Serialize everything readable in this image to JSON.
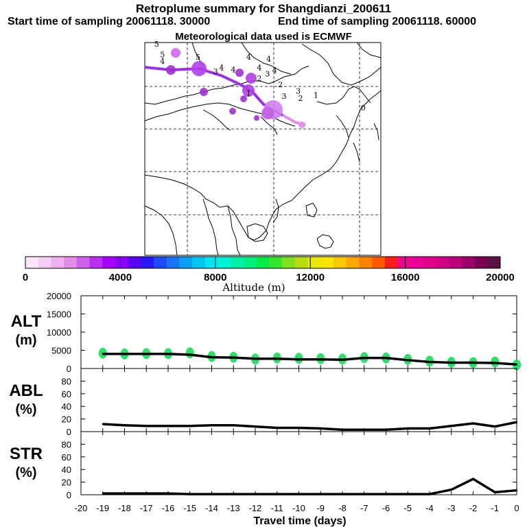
{
  "header": {
    "title": "Retroplume summary for Shangdianzi_200611",
    "start": "Start time of sampling 20061118. 30000",
    "end": "End time of sampling 20061118. 60000",
    "met": "Meteorological data used is ECMWF"
  },
  "colors": {
    "palette": [
      "#fbe6fb",
      "#f6cdf6",
      "#eeb0ee",
      "#e38ce6",
      "#d060ea",
      "#bb2ef0",
      "#a600f6",
      "#8c00f8",
      "#5a00f0",
      "#2a19f7",
      "#1f48f7",
      "#1675f6",
      "#0a9ff5",
      "#00c6f3",
      "#00e5ef",
      "#00f2d4",
      "#00f0a8",
      "#00ee7a",
      "#00eb49",
      "#33e82a",
      "#7fe21c",
      "#b7dc12",
      "#e8e80b",
      "#f7e400",
      "#fac800",
      "#fca600",
      "#fd8400",
      "#fe5a00",
      "#f91c1c",
      "#f3008c",
      "#ec009a",
      "#e00089",
      "#d20084",
      "#bc0079",
      "#9c0069",
      "#7a0055",
      "#5a1044"
    ],
    "plume_path": "#9c2ee8",
    "plume_tail": "#e68de6",
    "alt_blob": "#2ee06a"
  },
  "colorbar": {
    "ticks": [
      "0",
      "4000",
      "8000",
      "12000",
      "16000",
      "20000"
    ],
    "label": "Altitude (m)"
  },
  "map": {
    "labels": [
      {
        "t": "5",
        "x": -19,
        "y": 49.0
      },
      {
        "t": "5",
        "x": -18.5,
        "y": 46.5
      },
      {
        "t": "5",
        "x": -15.5,
        "y": 46.0
      },
      {
        "t": "4",
        "x": -18.5,
        "y": 45.0
      },
      {
        "t": "4",
        "x": -13.5,
        "y": 43.5
      },
      {
        "t": "3",
        "x": -14,
        "y": 42.6
      },
      {
        "t": "4",
        "x": -12.5,
        "y": 43.0
      },
      {
        "t": "4",
        "x": -11.2,
        "y": 46.0
      },
      {
        "t": "4",
        "x": -9.5,
        "y": 45.5
      },
      {
        "t": "4",
        "x": -10.3,
        "y": 43.5
      },
      {
        "t": "4",
        "x": -9.0,
        "y": 42.8
      },
      {
        "t": "3",
        "x": -9.6,
        "y": 42.0
      },
      {
        "t": "2",
        "x": -10.3,
        "y": 41.0
      },
      {
        "t": "2",
        "x": -8.5,
        "y": 39.5
      },
      {
        "t": "1",
        "x": -11.2,
        "y": 37.5
      },
      {
        "t": "3",
        "x": -8.2,
        "y": 36.8
      },
      {
        "t": "3",
        "x": -7.0,
        "y": 38.0
      },
      {
        "t": "2",
        "x": -6.8,
        "y": 36.3
      },
      {
        "t": "1",
        "x": -5.5,
        "y": 37.0
      },
      {
        "t": "0",
        "x": -1.5,
        "y": 34.0
      }
    ]
  },
  "alt_panel": {
    "label": "ALT",
    "unit": "(m)",
    "ticks": [
      "20000",
      "15000",
      "10000",
      "5000",
      "0"
    ]
  },
  "abl_panel": {
    "label": "ABL",
    "unit": "(%)",
    "ticks": [
      "80",
      "60",
      "40",
      "20",
      "0"
    ]
  },
  "str_panel": {
    "label": "STR",
    "unit": "(%)",
    "ticks": [
      "80",
      "60",
      "40",
      "20",
      "0"
    ]
  },
  "xaxis": {
    "label": "Travel time (days)",
    "ticks": [
      "-20",
      "-19",
      "-18",
      "-17",
      "-16",
      "-15",
      "-14",
      "-13",
      "-12",
      "-11",
      "-10",
      "-9",
      "-8",
      "-7",
      "-6",
      "-5",
      "-4",
      "-3",
      "-2",
      "-1",
      "0"
    ]
  },
  "chart_data": [
    {
      "type": "line",
      "title": "ALT",
      "xlabel": "Travel time (days)",
      "ylabel": "ALT (m)",
      "xlim": [
        -20,
        0
      ],
      "ylim": [
        0,
        20000
      ],
      "x": [
        -19,
        -18,
        -17,
        -16,
        -15,
        -14,
        -13,
        -12,
        -11,
        -10,
        -9,
        -8,
        -7,
        -6,
        -5,
        -4,
        -3,
        -2,
        -1,
        0
      ],
      "values": [
        4000,
        4000,
        4000,
        4000,
        3800,
        3100,
        3000,
        2700,
        2700,
        2500,
        2500,
        2400,
        2900,
        2900,
        2300,
        1800,
        1600,
        1600,
        1500,
        1100
      ],
      "blobs": [
        4200,
        4000,
        4100,
        4100,
        4300,
        3300,
        3100,
        2600,
        2900,
        2800,
        2700,
        2600,
        3000,
        2900,
        2500,
        2000,
        1700,
        1600,
        1800,
        1000
      ]
    },
    {
      "type": "line",
      "title": "ABL",
      "ylabel": "ABL (%)",
      "xlim": [
        -20,
        0
      ],
      "ylim": [
        0,
        100
      ],
      "x": [
        -19,
        -18,
        -17,
        -16,
        -15,
        -14,
        -13,
        -12,
        -11,
        -10,
        -9,
        -8,
        -7,
        -6,
        -5,
        -4,
        -3,
        -2,
        -1,
        0
      ],
      "values": [
        12,
        10,
        9,
        9,
        9,
        10,
        10,
        8,
        6,
        6,
        5,
        3,
        3,
        3,
        5,
        5,
        9,
        13,
        8,
        15
      ]
    },
    {
      "type": "line",
      "title": "STR",
      "ylabel": "STR (%)",
      "xlim": [
        -20,
        0
      ],
      "ylim": [
        0,
        100
      ],
      "x": [
        -19,
        -18,
        -17,
        -16,
        -15,
        -14,
        -13,
        -12,
        -11,
        -10,
        -9,
        -8,
        -7,
        -6,
        -5,
        -4,
        -3,
        -2,
        -1,
        0
      ],
      "values": [
        2,
        2,
        2,
        2,
        1,
        1,
        1,
        1,
        1,
        1,
        1,
        1,
        1,
        1,
        1,
        1,
        8,
        25,
        4,
        7
      ]
    }
  ]
}
